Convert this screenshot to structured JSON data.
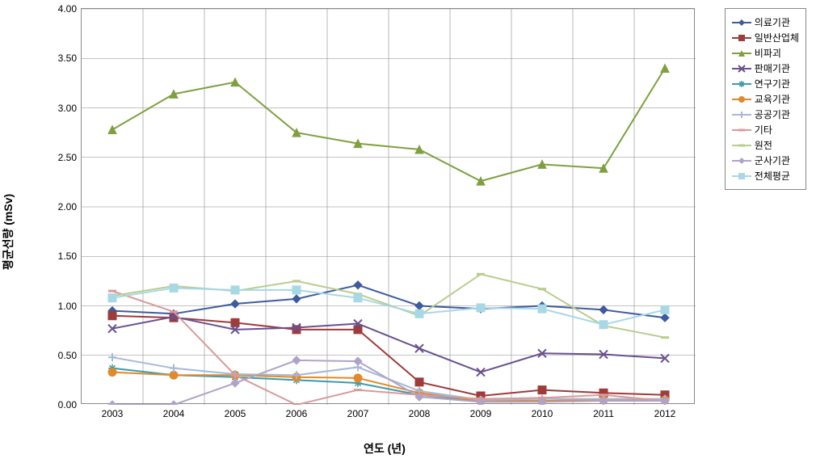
{
  "chart": {
    "type": "line",
    "background_color": "#ffffff",
    "border_color": "#888888",
    "grid_color": "#888888",
    "xlabel": "연도 (년)",
    "ylabel": "평균선량 (mSv)",
    "label_fontsize": 14,
    "tick_fontsize": 12,
    "legend_fontsize": 12,
    "ylim": [
      0,
      4.0
    ],
    "ytick_step": 0.5,
    "yticks": [
      "0.00",
      "0.50",
      "1.00",
      "1.50",
      "2.00",
      "2.50",
      "3.00",
      "3.50",
      "4.00"
    ],
    "categories": [
      "2003",
      "2004",
      "2005",
      "2006",
      "2007",
      "2008",
      "2009",
      "2010",
      "2011",
      "2012"
    ],
    "marker_size": 5,
    "line_width": 2,
    "series": [
      {
        "name": "의료기관",
        "color": "#3f5ba0",
        "marker": "diamond",
        "data": [
          0.95,
          0.92,
          1.02,
          1.07,
          1.21,
          1.0,
          0.97,
          1.0,
          0.96,
          0.88
        ]
      },
      {
        "name": "일반산업체",
        "color": "#9e3b3b",
        "marker": "square",
        "data": [
          0.9,
          0.88,
          0.83,
          0.76,
          0.76,
          0.23,
          0.09,
          0.15,
          0.12,
          0.1
        ]
      },
      {
        "name": "비파괴",
        "color": "#7ea040",
        "marker": "triangle",
        "data": [
          2.78,
          3.14,
          3.26,
          2.75,
          2.64,
          2.58,
          2.26,
          2.43,
          2.39,
          3.4
        ]
      },
      {
        "name": "판매기관",
        "color": "#6a508f",
        "marker": "x",
        "data": [
          0.77,
          0.89,
          0.76,
          0.78,
          0.82,
          0.57,
          0.33,
          0.52,
          0.51,
          0.47
        ]
      },
      {
        "name": "연구기관",
        "color": "#3d9bac",
        "marker": "star",
        "data": [
          0.37,
          0.3,
          0.28,
          0.25,
          0.22,
          0.1,
          0.04,
          0.04,
          0.05,
          0.05
        ]
      },
      {
        "name": "교육기관",
        "color": "#e08a2c",
        "marker": "circle",
        "data": [
          0.33,
          0.3,
          0.3,
          0.28,
          0.27,
          0.12,
          0.04,
          0.04,
          0.05,
          0.05
        ]
      },
      {
        "name": "공공기관",
        "color": "#a6b8d9",
        "marker": "plus",
        "data": [
          0.48,
          0.37,
          0.31,
          0.3,
          0.38,
          0.14,
          0.05,
          0.06,
          0.06,
          0.06
        ]
      },
      {
        "name": "기타",
        "color": "#d99a9a",
        "marker": "dash",
        "data": [
          1.15,
          0.94,
          0.3,
          0.0,
          0.15,
          0.1,
          0.06,
          0.07,
          0.1,
          0.04
        ]
      },
      {
        "name": "원전",
        "color": "#b8cd8e",
        "marker": "dash",
        "data": [
          1.1,
          1.2,
          1.15,
          1.25,
          1.12,
          0.9,
          1.32,
          1.17,
          0.8,
          0.68
        ]
      },
      {
        "name": "군사기관",
        "color": "#b0a3c9",
        "marker": "diamond",
        "data": [
          0.0,
          0.0,
          0.22,
          0.45,
          0.44,
          0.08,
          0.03,
          0.03,
          0.04,
          0.04
        ]
      },
      {
        "name": "전체평균",
        "color": "#a7d8e4",
        "marker": "square",
        "data": [
          1.08,
          1.18,
          1.16,
          1.16,
          1.08,
          0.92,
          0.98,
          0.97,
          0.81,
          0.96
        ]
      }
    ]
  }
}
